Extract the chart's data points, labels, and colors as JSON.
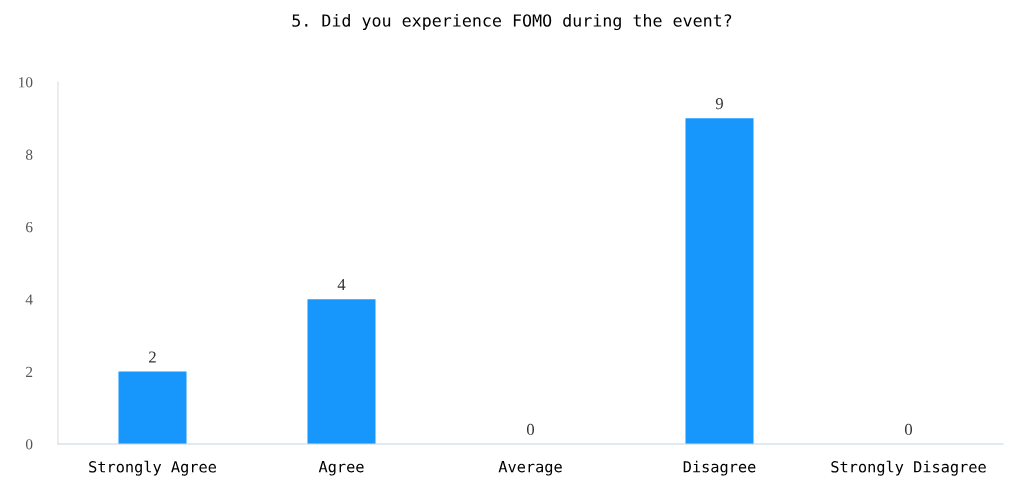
{
  "chart_data": {
    "type": "bar",
    "title": "5. Did you experience FOMO during the event?",
    "categories": [
      "Strongly Agree",
      "Agree",
      "Average",
      "Disagree",
      "Strongly Disagree"
    ],
    "values": [
      2,
      4,
      0,
      9,
      0
    ],
    "color": "#1797fb",
    "ylim": [
      0,
      10
    ],
    "yticks": [
      0,
      2,
      4,
      6,
      8,
      10
    ],
    "grid": false,
    "data_labels": true
  }
}
